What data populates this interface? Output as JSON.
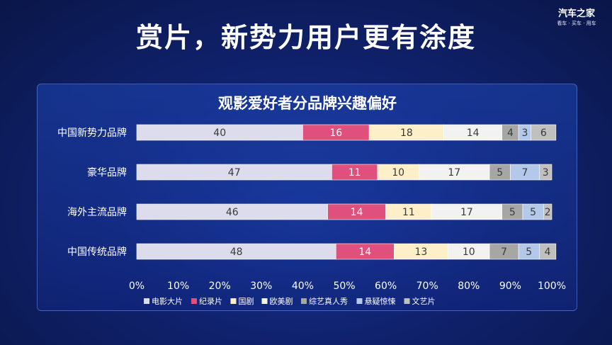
{
  "page": {
    "title": "赏片，新势力用户更有涂度",
    "logo": {
      "brand": "汽车之家",
      "tagline": "看车 · 买车 · 用车"
    }
  },
  "colors": {
    "background": "#10226e",
    "series": [
      "#dcdced",
      "#e0507e",
      "#fdf0c8",
      "#f2f2f2",
      "#a6a6a6",
      "#b4c8ea",
      "#c0c0c0"
    ]
  },
  "chart_data": {
    "type": "bar",
    "orientation": "horizontal",
    "stacked": true,
    "title": "观影爱好者分品牌兴趣偏好",
    "categories": [
      "中国新势力品牌",
      "豪华品牌",
      "海外主流品牌",
      "中国传统品牌"
    ],
    "series": [
      {
        "name": "电影大片",
        "values": [
          40,
          47,
          46,
          48
        ]
      },
      {
        "name": "纪录片",
        "values": [
          16,
          11,
          14,
          14
        ]
      },
      {
        "name": "国剧",
        "values": [
          18,
          10,
          11,
          13
        ]
      },
      {
        "name": "欧美剧",
        "values": [
          14,
          17,
          17,
          10
        ]
      },
      {
        "name": "综艺真人秀",
        "values": [
          4,
          5,
          5,
          7
        ]
      },
      {
        "name": "悬疑惊悚",
        "values": [
          3,
          7,
          5,
          5
        ]
      },
      {
        "name": "文艺片",
        "values": [
          6,
          3,
          2,
          4
        ]
      }
    ],
    "xlim": [
      0,
      100
    ],
    "xticks": [
      "0%",
      "10%",
      "20%",
      "30%",
      "40%",
      "50%",
      "60%",
      "70%",
      "80%",
      "90%",
      "100%"
    ],
    "legend_position": "bottom",
    "data_labels": true,
    "grid": false
  }
}
